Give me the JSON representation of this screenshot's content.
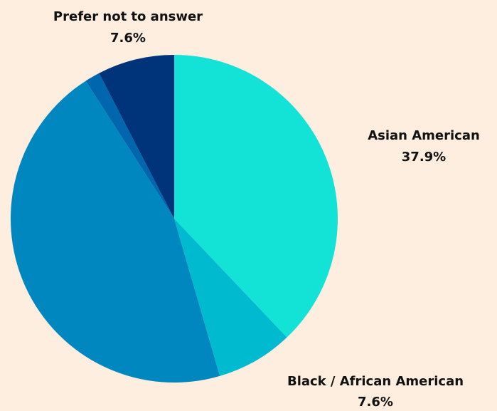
{
  "chart_data": {
    "type": "pie",
    "start_angle_deg": 0,
    "direction": "clockwise",
    "background": "#fdeee0",
    "slices": [
      {
        "label": "Asian American",
        "percent_label": "37.9%",
        "value": 37.9,
        "color": "#13e3d6",
        "labeled": true
      },
      {
        "label": "Black / African American",
        "percent_label": "7.6%",
        "value": 7.6,
        "color": "#00bad0",
        "labeled": true
      },
      {
        "label": "",
        "percent_label": "",
        "value": 45.4,
        "color": "#0087c0",
        "labeled": false
      },
      {
        "label": "",
        "percent_label": "",
        "value": 1.5,
        "color": "#0066ad",
        "labeled": false
      },
      {
        "label": "Prefer not to answer",
        "percent_label": "7.6%",
        "value": 7.6,
        "color": "#00347a",
        "labeled": true
      }
    ]
  }
}
